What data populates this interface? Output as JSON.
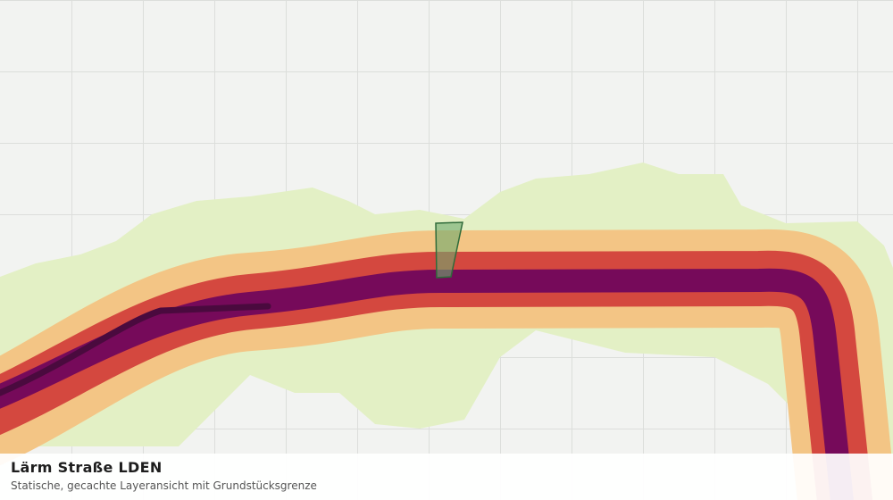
{
  "layer": {
    "title": "Lärm Straße LDEN",
    "subtitle": "Statische, gecachte Layeransicht mit Grundstücksgrenze"
  }
}
